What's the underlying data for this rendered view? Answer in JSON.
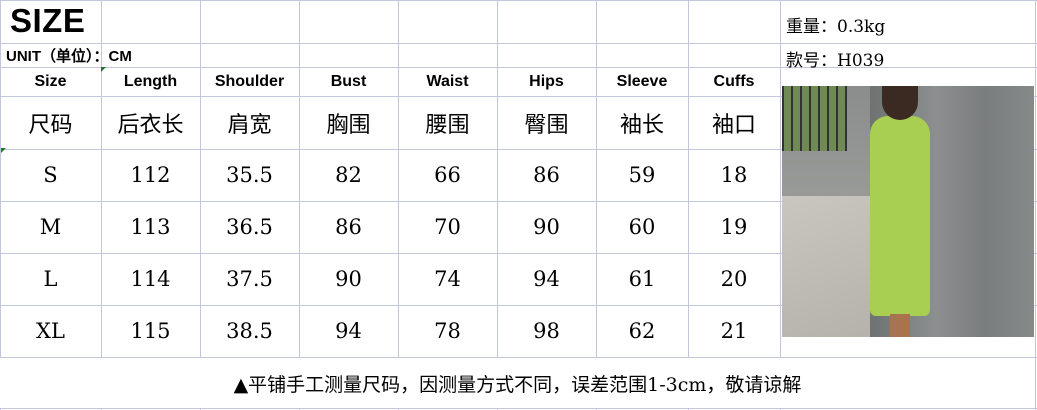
{
  "title": "SIZE",
  "unit_label": "UNIT（单位）：CM",
  "weight": "重量：0.3kg",
  "style_no": "款号：H039",
  "columns": [
    {
      "en": "Size",
      "cn": "尺码"
    },
    {
      "en": "Length",
      "cn": "后衣长"
    },
    {
      "en": "Shoulder",
      "cn": "肩宽"
    },
    {
      "en": "Bust",
      "cn": "胸围"
    },
    {
      "en": "Waist",
      "cn": "腰围"
    },
    {
      "en": "Hips",
      "cn": "臀围"
    },
    {
      "en": "Sleeve",
      "cn": "袖长"
    },
    {
      "en": "Cuffs",
      "cn": "袖口"
    }
  ],
  "rows": [
    [
      "S",
      "112",
      "35.5",
      "82",
      "66",
      "86",
      "59",
      "18"
    ],
    [
      "M",
      "113",
      "36.5",
      "86",
      "70",
      "90",
      "60",
      "19"
    ],
    [
      "L",
      "114",
      "37.5",
      "90",
      "74",
      "94",
      "61",
      "20"
    ],
    [
      "XL",
      "115",
      "38.5",
      "94",
      "78",
      "98",
      "62",
      "21"
    ]
  ],
  "note": "▲平铺手工测量尺码，因测量方式不同，误差范围1-3cm，敬请谅解",
  "photo_alt": "green dress product photo",
  "colors": {
    "grid": "#c3c6dc",
    "dress": "#a8cf52"
  }
}
